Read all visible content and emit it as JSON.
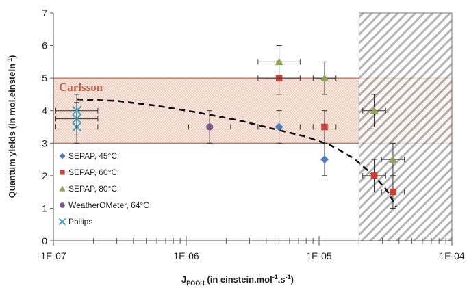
{
  "chart_data": {
    "type": "scatter",
    "xscale": "log",
    "xlim": [
      1e-07,
      0.0001
    ],
    "ylim": [
      0,
      7
    ],
    "xticks": [
      1e-07,
      1e-06,
      1e-05,
      0.0001
    ],
    "xtick_labels": [
      "1E-07",
      "1E-06",
      "1E-05",
      "1E-04"
    ],
    "yticks": [
      0,
      1,
      2,
      3,
      4,
      5,
      6,
      7
    ],
    "ytick_labels": [
      "0",
      "1",
      "2",
      "3",
      "4",
      "5",
      "6",
      "7"
    ],
    "ylabel": {
      "main": "Quantum yields (in mol.einstein",
      "sup": "-1",
      "tail": ")"
    },
    "xlabel": {
      "j": "J",
      "sub": "POOH",
      "pre": " (in einstein.mol",
      "sup1": "-1",
      "mid": ".s",
      "sup2": "-1",
      "tail": ")"
    },
    "grid": false,
    "legend_position": "left",
    "carlsson_band": {
      "label": "Carlsson",
      "ymin": 3,
      "ymax": 5,
      "color": "#c0654f"
    },
    "hatched_region": {
      "xmin": 2e-05,
      "xmax": 0.0001
    },
    "trend_line": {
      "style": "dashed",
      "x": [
        1.5e-07,
        3e-07,
        6e-07,
        1.2e-06,
        2.5e-06,
        5e-06,
        8e-06,
        1.2e-05,
        1.8e-05,
        2.6e-05,
        3.3e-05,
        3.8e-05
      ],
      "y": [
        4.35,
        4.3,
        4.15,
        3.95,
        3.7,
        3.4,
        3.2,
        2.95,
        2.55,
        2.0,
        1.5,
        1.05
      ]
    },
    "series": [
      {
        "name": "SEPAP, 45°C",
        "marker": "diamond",
        "color": "#4f7fba",
        "points": [
          {
            "x": 5e-06,
            "y": 3.5,
            "yerr": 0.5,
            "xerr": 0.1
          },
          {
            "x": 1.1e-05,
            "y": 2.5,
            "yerr": 0.5,
            "xerr": 0
          }
        ]
      },
      {
        "name": "SEPAP, 60°C",
        "marker": "square",
        "color": "#c8413b",
        "points": [
          {
            "x": 5e-06,
            "y": 5.0,
            "yerr": 0.5,
            "xerr": 0.1
          },
          {
            "x": 1.1e-05,
            "y": 3.5,
            "yerr": 0.5,
            "xerr": 0.05
          },
          {
            "x": 2.6e-05,
            "y": 2.0,
            "yerr": 0.5,
            "xerr": 0.05
          },
          {
            "x": 3.6e-05,
            "y": 1.5,
            "yerr": 0.5,
            "xerr": 0.05
          }
        ]
      },
      {
        "name": "SEPAP, 80°C",
        "marker": "triangle",
        "color": "#8da35a",
        "points": [
          {
            "x": 5e-06,
            "y": 5.5,
            "yerr": 0.5,
            "xerr": 0.1
          },
          {
            "x": 1.1e-05,
            "y": 5.0,
            "yerr": 0.5,
            "xerr": 0.05
          },
          {
            "x": 2.6e-05,
            "y": 4.0,
            "yerr": 0.5,
            "xerr": 0.05
          },
          {
            "x": 3.6e-05,
            "y": 2.5,
            "yerr": 0.5,
            "xerr": 0.05
          }
        ]
      },
      {
        "name": "WeatherOMeter, 64°C",
        "marker": "circle",
        "color": "#7f5a8f",
        "points": [
          {
            "x": 1.5e-06,
            "y": 3.5,
            "yerr": 0.5,
            "xerr": 0.1
          }
        ]
      },
      {
        "name": "Philips",
        "marker": "x",
        "color": "#4aa2c3",
        "points": [
          {
            "x": 1.5e-07,
            "y": 3.5,
            "yerr": 0.5,
            "xerr": 0.1
          },
          {
            "x": 1.5e-07,
            "y": 3.75,
            "yerr": 0.5,
            "xerr": 0.1
          },
          {
            "x": 1.5e-07,
            "y": 4.0,
            "yerr": 0.5,
            "xerr": 0.1
          }
        ]
      }
    ]
  }
}
